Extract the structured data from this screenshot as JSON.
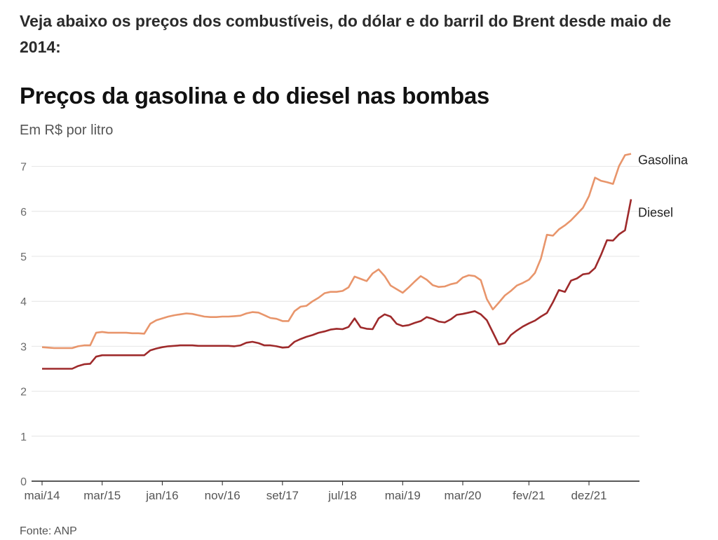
{
  "intro": "Veja abaixo os preços dos combustíveis, do dólar e do barril do Brent desde maio de 2014:",
  "source": "Fonte: ANP",
  "chart_data": {
    "type": "line",
    "title": "Preços da gasolina e do diesel nas bombas",
    "subtitle": "Em R$ por litro",
    "ylim": [
      0,
      7.4
    ],
    "yticks": [
      0,
      1,
      2,
      3,
      4,
      5,
      6,
      7
    ],
    "ytick_labels": [
      "0",
      "1",
      "2",
      "3",
      "4",
      "5",
      "6",
      "7"
    ],
    "xtick_labels": [
      "mai/14",
      "mar/15",
      "jan/16",
      "nov/16",
      "set/17",
      "jul/18",
      "mai/19",
      "mar/20",
      "fev/21",
      "dez/21"
    ],
    "xtick_dates": [
      "2014-05",
      "2015-03",
      "2016-01",
      "2016-11",
      "2017-09",
      "2018-07",
      "2019-05",
      "2020-03",
      "2021-02",
      "2021-12"
    ],
    "x_range": [
      "2014-05",
      "2022-04"
    ],
    "grid": true,
    "legend": "direct labels at line ends (right)",
    "series": [
      {
        "name": "Gasolina",
        "color": "#e8956b",
        "points": [
          [
            "2014-05",
            2.98
          ],
          [
            "2014-06",
            2.97
          ],
          [
            "2014-07",
            2.96
          ],
          [
            "2014-08",
            2.96
          ],
          [
            "2014-09",
            2.96
          ],
          [
            "2014-10",
            2.96
          ],
          [
            "2014-11",
            3.0
          ],
          [
            "2014-12",
            3.02
          ],
          [
            "2015-01",
            3.02
          ],
          [
            "2015-02",
            3.3
          ],
          [
            "2015-03",
            3.32
          ],
          [
            "2015-04",
            3.3
          ],
          [
            "2015-05",
            3.3
          ],
          [
            "2015-06",
            3.3
          ],
          [
            "2015-07",
            3.3
          ],
          [
            "2015-08",
            3.29
          ],
          [
            "2015-09",
            3.29
          ],
          [
            "2015-10",
            3.28
          ],
          [
            "2015-11",
            3.5
          ],
          [
            "2015-12",
            3.58
          ],
          [
            "2016-01",
            3.62
          ],
          [
            "2016-02",
            3.66
          ],
          [
            "2016-03",
            3.69
          ],
          [
            "2016-04",
            3.71
          ],
          [
            "2016-05",
            3.73
          ],
          [
            "2016-06",
            3.72
          ],
          [
            "2016-07",
            3.69
          ],
          [
            "2016-08",
            3.66
          ],
          [
            "2016-09",
            3.65
          ],
          [
            "2016-10",
            3.65
          ],
          [
            "2016-11",
            3.66
          ],
          [
            "2016-12",
            3.66
          ],
          [
            "2017-01",
            3.67
          ],
          [
            "2017-02",
            3.68
          ],
          [
            "2017-03",
            3.73
          ],
          [
            "2017-04",
            3.76
          ],
          [
            "2017-05",
            3.75
          ],
          [
            "2017-06",
            3.69
          ],
          [
            "2017-07",
            3.63
          ],
          [
            "2017-08",
            3.61
          ],
          [
            "2017-09",
            3.56
          ],
          [
            "2017-10",
            3.56
          ],
          [
            "2017-11",
            3.78
          ],
          [
            "2017-12",
            3.88
          ],
          [
            "2018-01",
            3.9
          ],
          [
            "2018-02",
            4.0
          ],
          [
            "2018-03",
            4.08
          ],
          [
            "2018-04",
            4.18
          ],
          [
            "2018-05",
            4.21
          ],
          [
            "2018-06",
            4.21
          ],
          [
            "2018-07",
            4.23
          ],
          [
            "2018-08",
            4.31
          ],
          [
            "2018-09",
            4.55
          ],
          [
            "2018-10",
            4.5
          ],
          [
            "2018-11",
            4.45
          ],
          [
            "2018-12",
            4.62
          ],
          [
            "2019-01",
            4.71
          ],
          [
            "2019-02",
            4.56
          ],
          [
            "2019-03",
            4.35
          ],
          [
            "2019-04",
            4.27
          ],
          [
            "2019-05",
            4.19
          ],
          [
            "2019-06",
            4.31
          ],
          [
            "2019-07",
            4.44
          ],
          [
            "2019-08",
            4.56
          ],
          [
            "2019-09",
            4.48
          ],
          [
            "2019-10",
            4.36
          ],
          [
            "2019-11",
            4.32
          ],
          [
            "2019-12",
            4.33
          ],
          [
            "2020-01",
            4.38
          ],
          [
            "2020-02",
            4.41
          ],
          [
            "2020-03",
            4.53
          ],
          [
            "2020-04",
            4.58
          ],
          [
            "2020-05",
            4.56
          ],
          [
            "2020-06",
            4.47
          ],
          [
            "2020-07",
            4.05
          ],
          [
            "2020-08",
            3.82
          ],
          [
            "2020-09",
            3.97
          ],
          [
            "2020-10",
            4.13
          ],
          [
            "2020-11",
            4.23
          ],
          [
            "2020-12",
            4.35
          ],
          [
            "2021-01",
            4.41
          ],
          [
            "2021-02",
            4.48
          ],
          [
            "2021-03",
            4.63
          ],
          [
            "2021-04",
            4.95
          ],
          [
            "2021-05",
            5.48
          ],
          [
            "2021-06",
            5.46
          ],
          [
            "2021-07",
            5.6
          ],
          [
            "2021-08",
            5.69
          ],
          [
            "2021-09",
            5.8
          ],
          [
            "2021-10",
            5.94
          ],
          [
            "2021-11",
            6.08
          ],
          [
            "2021-12",
            6.34
          ],
          [
            "2022-01",
            6.75
          ],
          [
            "2022-02",
            6.68
          ],
          [
            "2022-03",
            6.65
          ],
          [
            "2022-04",
            6.61
          ],
          [
            "2022-05",
            7.01
          ],
          [
            "2022-06",
            7.25
          ],
          [
            "2022-07",
            7.28
          ]
        ]
      },
      {
        "name": "Diesel",
        "color": "#9e2a2b",
        "points": [
          [
            "2014-05",
            2.5
          ],
          [
            "2014-06",
            2.5
          ],
          [
            "2014-07",
            2.5
          ],
          [
            "2014-08",
            2.5
          ],
          [
            "2014-09",
            2.5
          ],
          [
            "2014-10",
            2.5
          ],
          [
            "2014-11",
            2.56
          ],
          [
            "2014-12",
            2.6
          ],
          [
            "2015-01",
            2.61
          ],
          [
            "2015-02",
            2.77
          ],
          [
            "2015-03",
            2.8
          ],
          [
            "2015-04",
            2.8
          ],
          [
            "2015-05",
            2.8
          ],
          [
            "2015-06",
            2.8
          ],
          [
            "2015-07",
            2.8
          ],
          [
            "2015-08",
            2.8
          ],
          [
            "2015-09",
            2.8
          ],
          [
            "2015-10",
            2.8
          ],
          [
            "2015-11",
            2.91
          ],
          [
            "2015-12",
            2.95
          ],
          [
            "2016-01",
            2.98
          ],
          [
            "2016-02",
            3.0
          ],
          [
            "2016-03",
            3.01
          ],
          [
            "2016-04",
            3.02
          ],
          [
            "2016-05",
            3.02
          ],
          [
            "2016-06",
            3.02
          ],
          [
            "2016-07",
            3.01
          ],
          [
            "2016-08",
            3.01
          ],
          [
            "2016-09",
            3.01
          ],
          [
            "2016-10",
            3.01
          ],
          [
            "2016-11",
            3.01
          ],
          [
            "2016-12",
            3.01
          ],
          [
            "2017-01",
            3.0
          ],
          [
            "2017-02",
            3.02
          ],
          [
            "2017-03",
            3.08
          ],
          [
            "2017-04",
            3.1
          ],
          [
            "2017-05",
            3.07
          ],
          [
            "2017-06",
            3.02
          ],
          [
            "2017-07",
            3.02
          ],
          [
            "2017-08",
            3.0
          ],
          [
            "2017-09",
            2.97
          ],
          [
            "2017-10",
            2.98
          ],
          [
            "2017-11",
            3.1
          ],
          [
            "2017-12",
            3.16
          ],
          [
            "2018-01",
            3.21
          ],
          [
            "2018-02",
            3.25
          ],
          [
            "2018-03",
            3.3
          ],
          [
            "2018-04",
            3.33
          ],
          [
            "2018-05",
            3.37
          ],
          [
            "2018-06",
            3.39
          ],
          [
            "2018-07",
            3.38
          ],
          [
            "2018-08",
            3.43
          ],
          [
            "2018-09",
            3.62
          ],
          [
            "2018-10",
            3.42
          ],
          [
            "2018-11",
            3.39
          ],
          [
            "2018-12",
            3.38
          ],
          [
            "2019-01",
            3.62
          ],
          [
            "2019-02",
            3.71
          ],
          [
            "2019-03",
            3.66
          ],
          [
            "2019-04",
            3.5
          ],
          [
            "2019-05",
            3.45
          ],
          [
            "2019-06",
            3.47
          ],
          [
            "2019-07",
            3.52
          ],
          [
            "2019-08",
            3.56
          ],
          [
            "2019-09",
            3.65
          ],
          [
            "2019-10",
            3.61
          ],
          [
            "2019-11",
            3.55
          ],
          [
            "2019-12",
            3.53
          ],
          [
            "2020-01",
            3.6
          ],
          [
            "2020-02",
            3.7
          ],
          [
            "2020-03",
            3.72
          ],
          [
            "2020-04",
            3.75
          ],
          [
            "2020-05",
            3.78
          ],
          [
            "2020-06",
            3.71
          ],
          [
            "2020-07",
            3.58
          ],
          [
            "2020-08",
            3.31
          ],
          [
            "2020-09",
            3.04
          ],
          [
            "2020-10",
            3.07
          ],
          [
            "2020-11",
            3.25
          ],
          [
            "2020-12",
            3.35
          ],
          [
            "2021-01",
            3.44
          ],
          [
            "2021-02",
            3.51
          ],
          [
            "2021-03",
            3.57
          ],
          [
            "2021-04",
            3.66
          ],
          [
            "2021-05",
            3.74
          ],
          [
            "2021-06",
            3.98
          ],
          [
            "2021-07",
            4.25
          ],
          [
            "2021-08",
            4.21
          ],
          [
            "2021-09",
            4.46
          ],
          [
            "2021-10",
            4.51
          ],
          [
            "2021-11",
            4.6
          ],
          [
            "2021-12",
            4.62
          ],
          [
            "2022-01",
            4.74
          ],
          [
            "2022-02",
            5.03
          ],
          [
            "2022-03",
            5.36
          ],
          [
            "2022-04",
            5.35
          ],
          [
            "2022-05",
            5.49
          ],
          [
            "2022-06",
            5.58
          ],
          [
            "2022-07",
            6.27
          ]
        ]
      }
    ]
  }
}
